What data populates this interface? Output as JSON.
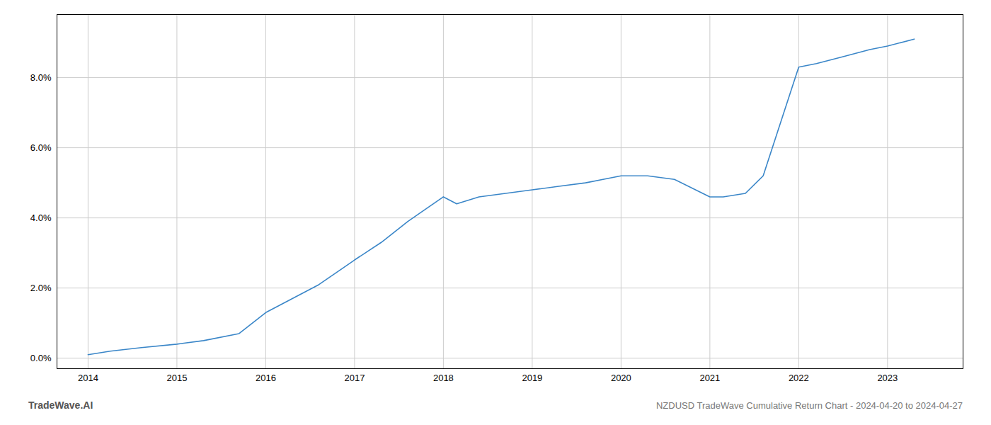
{
  "chart_data": {
    "type": "line",
    "title": "NZDUSD TradeWave Cumulative Return Chart - 2024-04-20 to 2024-04-27",
    "annotations": [
      "TradeWave.AI"
    ],
    "x": [
      2014.0,
      2014.25,
      2014.6,
      2015.0,
      2015.3,
      2015.7,
      2016.0,
      2016.3,
      2016.6,
      2017.0,
      2017.3,
      2017.6,
      2018.0,
      2018.15,
      2018.4,
      2018.7,
      2019.0,
      2019.3,
      2019.6,
      2020.0,
      2020.3,
      2020.6,
      2021.0,
      2021.15,
      2021.4,
      2021.6,
      2022.0,
      2022.2,
      2022.5,
      2022.8,
      2023.0,
      2023.3
    ],
    "values": [
      0.001,
      0.002,
      0.003,
      0.004,
      0.005,
      0.007,
      0.013,
      0.017,
      0.021,
      0.028,
      0.033,
      0.039,
      0.046,
      0.044,
      0.046,
      0.047,
      0.048,
      0.049,
      0.05,
      0.052,
      0.052,
      0.051,
      0.046,
      0.046,
      0.047,
      0.052,
      0.083,
      0.084,
      0.086,
      0.088,
      0.089,
      0.091
    ],
    "color": "#3a86c8",
    "xlim": [
      2013.65,
      2023.85
    ],
    "ylim": [
      -0.003,
      0.098
    ],
    "xticks": [
      2014,
      2015,
      2016,
      2017,
      2018,
      2019,
      2020,
      2021,
      2022,
      2023
    ],
    "yticks": [
      {
        "value": 0.0,
        "label": "0.0%"
      },
      {
        "value": 0.02,
        "label": "2.0%"
      },
      {
        "value": 0.04,
        "label": "4.0%"
      },
      {
        "value": 0.06,
        "label": "6.0%"
      },
      {
        "value": 0.08,
        "label": "8.0%"
      }
    ],
    "grid": true
  }
}
